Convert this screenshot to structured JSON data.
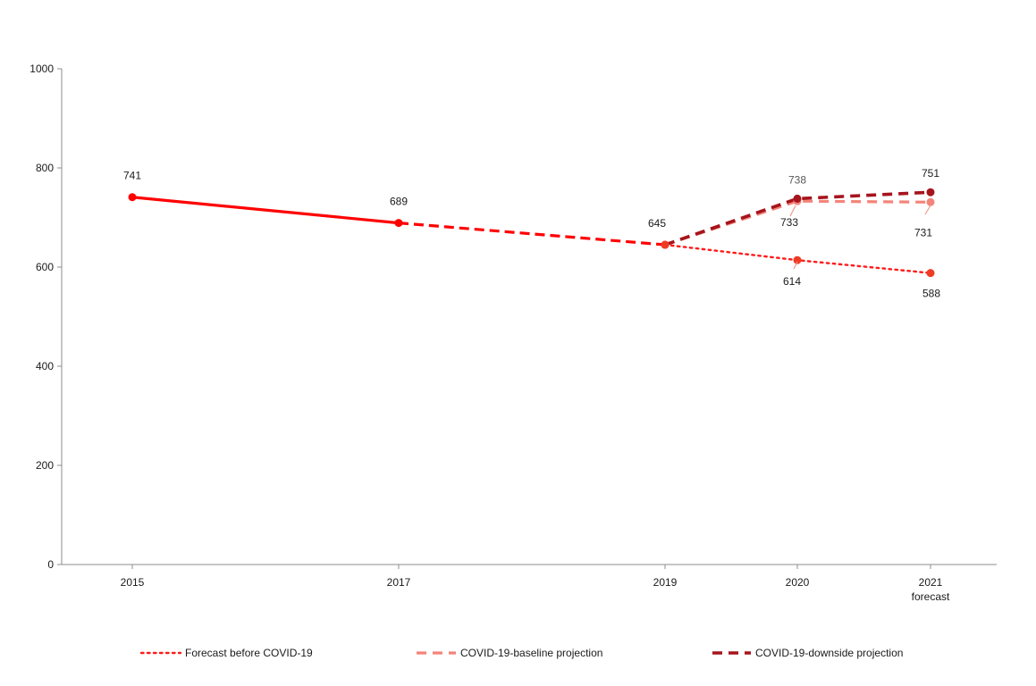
{
  "chart_data": {
    "type": "line",
    "x": [
      "2015",
      "2017",
      "2019",
      "2020",
      "2021"
    ],
    "x_sublabels": [
      "",
      "",
      "",
      "",
      "forecast"
    ],
    "ylim": [
      0,
      1000
    ],
    "yticks": [
      0,
      200,
      400,
      600,
      800,
      1000
    ],
    "grid": false,
    "legend_position": "bottom",
    "colors": {
      "historical": "#ff0000",
      "forecast": "#ff1a1a",
      "baseline": "#f4847a",
      "downside": "#a6141c",
      "marker": "#ef3b24"
    },
    "series": [
      {
        "key": "historical",
        "points": [
          {
            "x": "2015",
            "y": 741,
            "label": "741"
          },
          {
            "x": "2017",
            "y": 689,
            "label": "689"
          },
          {
            "x": "2019",
            "y": 645,
            "label": "645"
          }
        ]
      },
      {
        "key": "forecast",
        "name": "Forecast before COVID-19",
        "points": [
          {
            "x": "2019",
            "y": 645
          },
          {
            "x": "2020",
            "y": 614,
            "label": "614"
          },
          {
            "x": "2021",
            "y": 588,
            "label": "588"
          }
        ]
      },
      {
        "key": "baseline",
        "name": "COVID-19-baseline projection",
        "points": [
          {
            "x": "2019",
            "y": 645
          },
          {
            "x": "2020",
            "y": 733,
            "label": "733"
          },
          {
            "x": "2021",
            "y": 731,
            "label": "731"
          }
        ]
      },
      {
        "key": "downside",
        "name": "COVID-19-downside projection",
        "points": [
          {
            "x": "2019",
            "y": 645
          },
          {
            "x": "2020",
            "y": 738,
            "label": "738"
          },
          {
            "x": "2021",
            "y": 751,
            "label": "751"
          }
        ]
      }
    ]
  }
}
